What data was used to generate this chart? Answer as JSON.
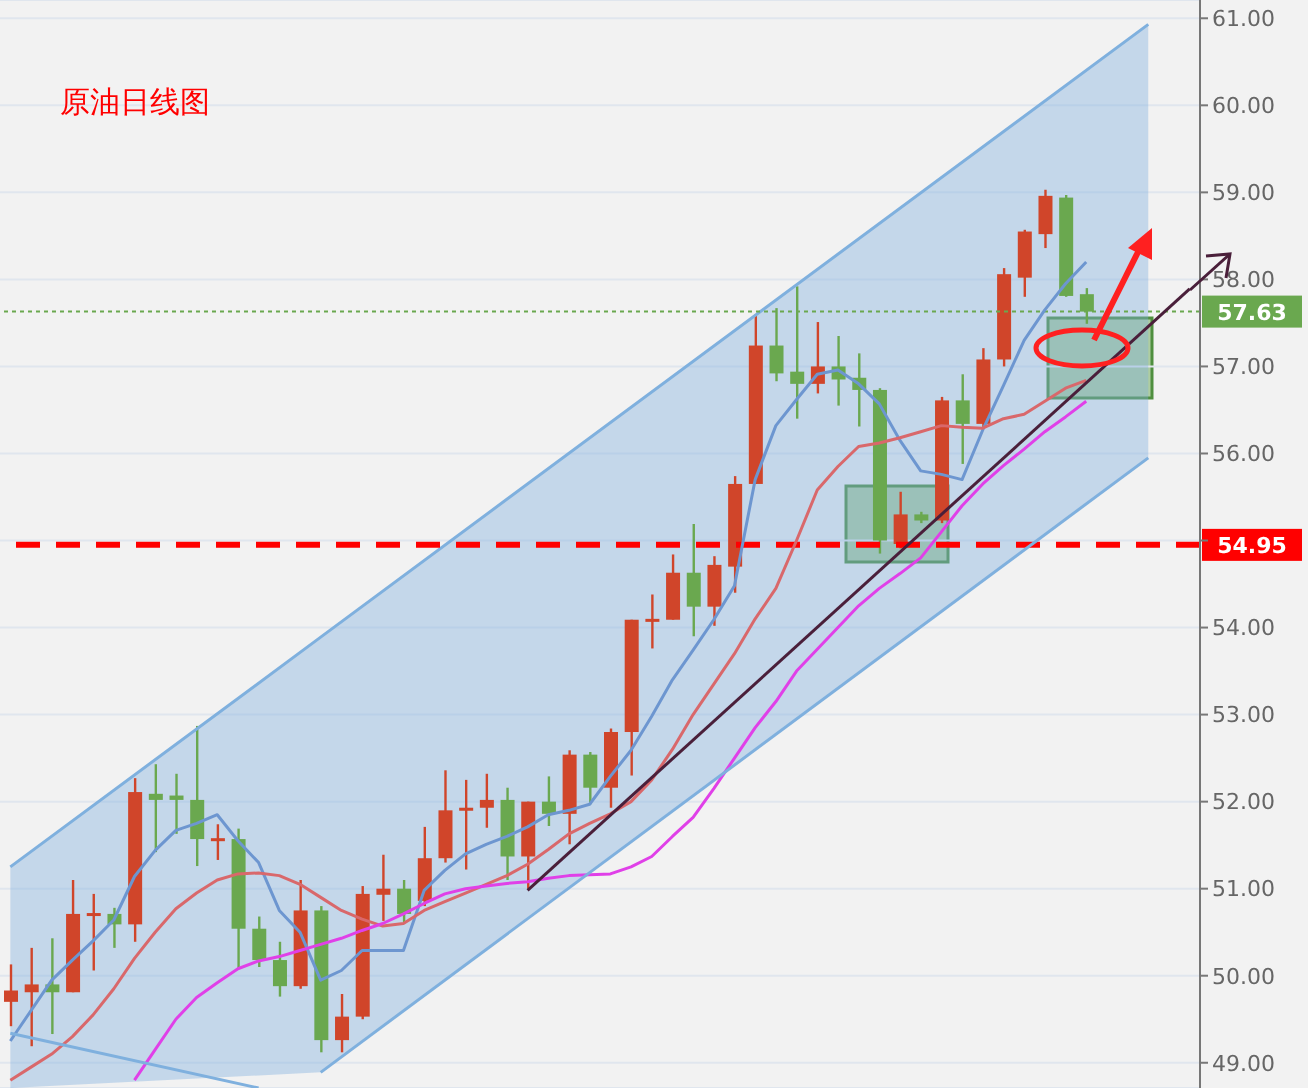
{
  "chart_data": {
    "type": "candlestick",
    "title": "原油日线图",
    "categories": [
      null,
      null,
      null,
      null,
      null,
      null,
      null,
      null,
      null,
      null,
      null,
      null,
      null,
      null,
      null,
      null,
      null,
      null,
      null,
      null,
      null,
      null,
      null,
      null,
      null,
      null,
      null,
      null,
      null,
      null,
      null,
      null,
      null,
      null,
      null,
      null,
      null,
      null,
      null,
      null,
      null,
      null,
      null,
      null,
      null,
      null,
      null,
      null,
      null,
      null,
      null,
      null,
      null,
      null,
      null,
      null,
      null,
      null
    ],
    "ohlc": [
      [
        49.7,
        50.13,
        49.42,
        49.83
      ],
      [
        49.81,
        50.32,
        49.19,
        49.9
      ],
      [
        49.9,
        50.43,
        49.33,
        49.81
      ],
      [
        49.81,
        51.1,
        49.81,
        50.71
      ],
      [
        50.69,
        50.94,
        50.06,
        50.72
      ],
      [
        50.71,
        50.78,
        50.32,
        50.59
      ],
      [
        50.59,
        52.27,
        50.39,
        52.11
      ],
      [
        52.09,
        52.43,
        51.42,
        52.02
      ],
      [
        52.07,
        52.32,
        51.63,
        52.02
      ],
      [
        52.02,
        52.87,
        51.26,
        51.57
      ],
      [
        51.55,
        51.74,
        51.33,
        51.58
      ],
      [
        51.57,
        51.69,
        50.08,
        50.54
      ],
      [
        50.54,
        50.68,
        50.1,
        50.18
      ],
      [
        50.18,
        50.39,
        49.76,
        49.88
      ],
      [
        49.88,
        51.1,
        49.85,
        50.75
      ],
      [
        50.75,
        50.8,
        49.12,
        49.26
      ],
      [
        49.26,
        49.79,
        49.12,
        49.53
      ],
      [
        49.53,
        51.03,
        49.5,
        50.94
      ],
      [
        50.93,
        51.39,
        50.63,
        51.0
      ],
      [
        51.0,
        51.1,
        50.6,
        50.71
      ],
      [
        50.86,
        51.71,
        50.8,
        51.35
      ],
      [
        51.35,
        52.36,
        51.3,
        51.9
      ],
      [
        51.91,
        52.25,
        51.22,
        51.93
      ],
      [
        51.93,
        52.32,
        51.7,
        52.02
      ],
      [
        52.02,
        52.16,
        51.1,
        51.37
      ],
      [
        51.37,
        52.0,
        51.0,
        52.0
      ],
      [
        52.0,
        52.29,
        51.72,
        51.86
      ],
      [
        51.86,
        52.59,
        51.51,
        52.54
      ],
      [
        52.54,
        52.57,
        51.97,
        52.16
      ],
      [
        52.16,
        52.84,
        51.93,
        52.8
      ],
      [
        52.8,
        54.09,
        52.3,
        54.09
      ],
      [
        54.08,
        54.38,
        53.76,
        54.1
      ],
      [
        54.09,
        54.84,
        54.09,
        54.63
      ],
      [
        54.63,
        55.19,
        53.9,
        54.24
      ],
      [
        54.24,
        54.82,
        54.02,
        54.72
      ],
      [
        54.7,
        55.74,
        54.4,
        55.65
      ],
      [
        55.65,
        57.6,
        55.65,
        57.24
      ],
      [
        57.24,
        57.67,
        56.83,
        56.92
      ],
      [
        56.94,
        57.92,
        56.4,
        56.8
      ],
      [
        56.8,
        57.51,
        56.69,
        57.0
      ],
      [
        57.0,
        57.35,
        56.55,
        56.85
      ],
      [
        56.87,
        57.15,
        56.31,
        56.73
      ],
      [
        56.73,
        56.75,
        54.85,
        55.0
      ],
      [
        54.96,
        55.56,
        54.91,
        55.3
      ],
      [
        55.3,
        55.33,
        55.2,
        55.23
      ],
      [
        55.23,
        56.65,
        55.2,
        56.61
      ],
      [
        56.61,
        56.91,
        55.88,
        56.34
      ],
      [
        56.34,
        57.21,
        56.3,
        57.08
      ],
      [
        57.08,
        58.13,
        57.0,
        58.06
      ],
      [
        58.02,
        58.57,
        57.8,
        58.55
      ],
      [
        58.52,
        59.03,
        58.36,
        58.96
      ],
      [
        58.94,
        58.97,
        57.8,
        57.81
      ],
      [
        57.83,
        57.9,
        57.49,
        57.63
      ],
      null,
      null,
      null,
      null,
      null
    ],
    "colors": [
      "#d0452a",
      "#d0452a",
      "#6aa84f",
      "#d0452a",
      "#d0452a",
      "#6aa84f",
      "#d0452a",
      "#6aa84f",
      "#6aa84f",
      "#6aa84f",
      "#d0452a",
      "#6aa84f",
      "#6aa84f",
      "#6aa84f",
      "#d0452a",
      "#6aa84f",
      "#d0452a",
      "#d0452a",
      "#d0452a",
      "#6aa84f",
      "#d0452a",
      "#d0452a",
      "#d0452a",
      "#d0452a",
      "#6aa84f",
      "#d0452a",
      "#6aa84f",
      "#d0452a",
      "#6aa84f",
      "#d0452a",
      "#d0452a",
      "#d0452a",
      "#d0452a",
      "#6aa84f",
      "#d0452a",
      "#d0452a",
      "#d0452a",
      "#6aa84f",
      "#6aa84f",
      "#d0452a",
      "#6aa84f",
      "#6aa84f",
      "#6aa84f",
      "#d0452a",
      "#6aa84f",
      "#d0452a",
      "#6aa84f",
      "#d0452a",
      "#d0452a",
      "#d0452a",
      "#d0452a",
      "#6aa84f",
      "#6aa84f",
      null,
      null,
      null,
      null,
      null
    ],
    "series": [
      {
        "type": "line",
        "color": "#6d96d0",
        "values": [
          49.25,
          49.6,
          49.95,
          50.18,
          50.4,
          50.64,
          51.14,
          51.44,
          51.67,
          51.75,
          51.85,
          51.55,
          51.3,
          50.75,
          50.5,
          49.95,
          50.06,
          50.29,
          50.29,
          50.29,
          50.98,
          51.21,
          51.4,
          51.51,
          51.6,
          51.71,
          51.85,
          51.9,
          51.97,
          52.29,
          52.59,
          52.98,
          53.4,
          53.74,
          54.09,
          54.48,
          55.7,
          56.32,
          56.62,
          56.91,
          56.96,
          56.8,
          56.57,
          56.15,
          55.8,
          55.76,
          55.7,
          56.27,
          56.78,
          57.3,
          57.65,
          57.95,
          58.2,
          null,
          null,
          null,
          null,
          null
        ]
      },
      {
        "type": "line",
        "color": "#d9686b",
        "values": [
          48.8,
          48.95,
          49.1,
          49.3,
          49.55,
          49.85,
          50.2,
          50.5,
          50.77,
          50.95,
          51.1,
          51.17,
          51.18,
          51.15,
          51.05,
          50.9,
          50.75,
          50.65,
          50.57,
          50.6,
          50.75,
          50.85,
          50.95,
          51.05,
          51.15,
          51.28,
          51.45,
          51.63,
          51.75,
          51.86,
          52.0,
          52.25,
          52.6,
          53.0,
          53.35,
          53.7,
          54.1,
          54.45,
          55.0,
          55.58,
          55.85,
          56.08,
          56.12,
          56.18,
          56.25,
          56.32,
          56.3,
          56.29,
          56.4,
          56.45,
          56.6,
          56.75,
          56.84,
          null,
          null,
          null,
          null,
          null
        ]
      },
      {
        "type": "line",
        "color": "#e040e8",
        "values": [
          null,
          null,
          null,
          null,
          null,
          null,
          48.8,
          49.15,
          49.5,
          49.75,
          49.92,
          50.08,
          50.17,
          50.22,
          50.29,
          50.36,
          50.43,
          50.52,
          50.6,
          50.71,
          50.83,
          50.94,
          51.0,
          51.03,
          51.06,
          51.08,
          51.12,
          51.15,
          51.16,
          51.17,
          51.25,
          51.37,
          51.6,
          51.82,
          52.15,
          52.5,
          52.85,
          53.15,
          53.5,
          53.75,
          54.0,
          54.25,
          54.45,
          54.62,
          54.8,
          55.1,
          55.4,
          55.65,
          55.86,
          56.05,
          56.25,
          56.42,
          56.6,
          null,
          null,
          null,
          null,
          null
        ]
      },
      {
        "type": "area",
        "color": "#7fb0de",
        "values": [
          51.25,
          null,
          null,
          null,
          null,
          null,
          null,
          null,
          null,
          null,
          null,
          null,
          null,
          null,
          null,
          53.89,
          null,
          null,
          null,
          null,
          null,
          null,
          null,
          null,
          null,
          null,
          null,
          null,
          null,
          null,
          null,
          null,
          null,
          null,
          null,
          null,
          null,
          null,
          null,
          null,
          null,
          null,
          null,
          null,
          null,
          null,
          null,
          null,
          null,
          null,
          null,
          null,
          null,
          null,
          null,
          60.93,
          null,
          null
        ]
      },
      {
        "type": "line",
        "color": "#7fb0de",
        "values": [
          null,
          null,
          null,
          null,
          null,
          null,
          null,
          null,
          null,
          null,
          null,
          null,
          null,
          null,
          null,
          48.89,
          null,
          null,
          null,
          null,
          null,
          null,
          null,
          null,
          null,
          null,
          null,
          null,
          null,
          null,
          null,
          null,
          null,
          null,
          null,
          null,
          null,
          null,
          null,
          null,
          null,
          null,
          null,
          null,
          null,
          null,
          null,
          null,
          null,
          null,
          null,
          null,
          null,
          null,
          null,
          55.95,
          null,
          null
        ]
      },
      {
        "type": "line",
        "color": "#7fb0de",
        "values": [
          49.34,
          null,
          null,
          null,
          null,
          null,
          null,
          null,
          null,
          null,
          null,
          null,
          48.71,
          null,
          null,
          null,
          null,
          null,
          null,
          null,
          null,
          null,
          null,
          null,
          null,
          null,
          null,
          null,
          null,
          null,
          null,
          null,
          null,
          null,
          null,
          null,
          null,
          null,
          null,
          null,
          null,
          null,
          null,
          null,
          null,
          null,
          null,
          null,
          null,
          null,
          null,
          null,
          null,
          null,
          null,
          null,
          null,
          null
        ]
      },
      {
        "type": "line",
        "color": "#4a1f3a",
        "values": [
          null,
          null,
          null,
          null,
          null,
          null,
          null,
          null,
          null,
          null,
          null,
          null,
          null,
          null,
          null,
          null,
          null,
          null,
          null,
          null,
          null,
          null,
          null,
          null,
          null,
          50.98,
          null,
          null,
          null,
          null,
          null,
          null,
          null,
          null,
          null,
          null,
          null,
          null,
          null,
          null,
          null,
          null,
          null,
          null,
          null,
          null,
          null,
          null,
          null,
          null,
          null,
          null,
          null,
          null,
          null,
          null,
          null,
          57.89
        ]
      }
    ],
    "ylim": [
      48.71,
      61.21
    ],
    "yticks": [
      {
        "value": 49,
        "label": "49.00"
      },
      {
        "value": 50,
        "label": "50.00"
      },
      {
        "value": 51,
        "label": "51.00"
      },
      {
        "value": 52,
        "label": "52.00"
      },
      {
        "value": 53,
        "label": "53.00"
      },
      {
        "value": 54,
        "label": "54.00"
      },
      {
        "value": 55,
        "label": null
      },
      {
        "value": 56,
        "label": "56.00"
      },
      {
        "value": 57,
        "label": "57.00"
      },
      {
        "value": 58,
        "label": "58.00"
      },
      {
        "value": 59,
        "label": "59.00"
      },
      {
        "value": 60,
        "label": "60.00"
      },
      {
        "value": 61,
        "label": "61.00"
      }
    ],
    "ref_lines": [
      {
        "axis": "y",
        "value": 54.95,
        "label": "54.95",
        "color": "#ff0000",
        "line_style": "dashed"
      },
      {
        "axis": "y",
        "value": 57.63,
        "label": "57.63",
        "color": "#6aa84f",
        "line_style": "dotted"
      }
    ],
    "grid": "y"
  }
}
